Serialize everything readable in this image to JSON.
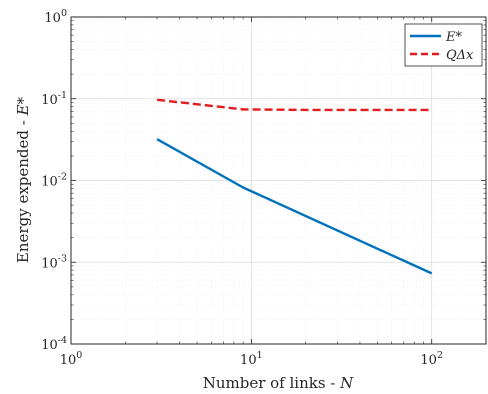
{
  "chart_data": {
    "type": "line",
    "x_scale": "log",
    "y_scale": "log",
    "xlim": [
      1,
      200
    ],
    "ylim": [
      0.0001,
      1
    ],
    "grid": true,
    "legend_position": "top-right",
    "xlabel_text": "Number of links - ",
    "xlabel_var": "N",
    "ylabel_text": "Energy expended - ",
    "ylabel_var": "E*",
    "x_ticks": [
      {
        "value": 1,
        "base": "10",
        "exp": "0"
      },
      {
        "value": 10,
        "base": "10",
        "exp": "1"
      },
      {
        "value": 100,
        "base": "10",
        "exp": "2"
      }
    ],
    "y_ticks": [
      {
        "value": 1,
        "base": "10",
        "exp": "0"
      },
      {
        "value": 0.1,
        "base": "10",
        "exp": "-1"
      },
      {
        "value": 0.01,
        "base": "10",
        "exp": "-2"
      },
      {
        "value": 0.001,
        "base": "10",
        "exp": "-3"
      },
      {
        "value": 0.0001,
        "base": "10",
        "exp": "-4"
      }
    ],
    "series": [
      {
        "name": "E*",
        "color": "#0072BD",
        "dash": "solid",
        "x": [
          3,
          9,
          100
        ],
        "y": [
          0.032,
          0.0082,
          0.00073
        ]
      },
      {
        "name": "QΔx",
        "color": "#E41A1C",
        "dash": "dashed",
        "x": [
          3,
          9,
          20,
          100
        ],
        "y": [
          0.097,
          0.074,
          0.073,
          0.073
        ]
      }
    ]
  }
}
